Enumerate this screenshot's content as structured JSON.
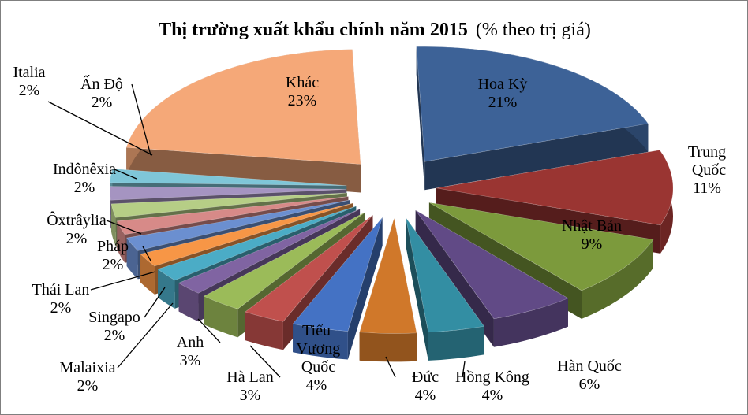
{
  "chart_data": {
    "type": "pie",
    "title": "Thị trường xuất khẩu chính năm 2015",
    "subtitle": "(% theo trị giá)",
    "unit": "%",
    "slices": [
      {
        "name": "Hoa Kỳ",
        "value": 21,
        "label": "21%",
        "color": "#3d6297"
      },
      {
        "name": "Trung Quốc",
        "value": 11,
        "label": "11%",
        "color": "#9a3532"
      },
      {
        "name": "Nhật Bản",
        "value": 9,
        "label": "9%",
        "color": "#7c9a3c"
      },
      {
        "name": "Hàn Quốc",
        "value": 6,
        "label": "6%",
        "color": "#614a86"
      },
      {
        "name": "Hồng Kông",
        "value": 4,
        "label": "4%",
        "color": "#338ea3"
      },
      {
        "name": "Đức",
        "value": 4,
        "label": "4%",
        "color": "#d0782a"
      },
      {
        "name": "Tiểu Vương Quốc",
        "value": 4,
        "label": "4%",
        "color": "#4472c4"
      },
      {
        "name": "Hà Lan",
        "value": 3,
        "label": "3%",
        "color": "#c0504d"
      },
      {
        "name": "Anh",
        "value": 3,
        "label": "3%",
        "color": "#9bbb59"
      },
      {
        "name": "Malaixia",
        "value": 2,
        "label": "2%",
        "color": "#8064a2"
      },
      {
        "name": "Singapo",
        "value": 2,
        "label": "2%",
        "color": "#4bacc6"
      },
      {
        "name": "Thái Lan",
        "value": 2,
        "label": "2%",
        "color": "#f79646"
      },
      {
        "name": "Pháp",
        "value": 2,
        "label": "2%",
        "color": "#6b8fd0"
      },
      {
        "name": "Ôxtrâylia",
        "value": 2,
        "label": "2%",
        "color": "#d78a88"
      },
      {
        "name": "Inđônêxia",
        "value": 2,
        "label": "2%",
        "color": "#b6ce86"
      },
      {
        "name": "Ấn Độ",
        "value": 2,
        "label": "2%",
        "color": "#a594c1"
      },
      {
        "name": "Italia",
        "value": 2,
        "label": "2%",
        "color": "#7fc6d8"
      },
      {
        "name": "Khác",
        "value": 23,
        "label": "23%",
        "color": "#f5a878"
      }
    ]
  }
}
